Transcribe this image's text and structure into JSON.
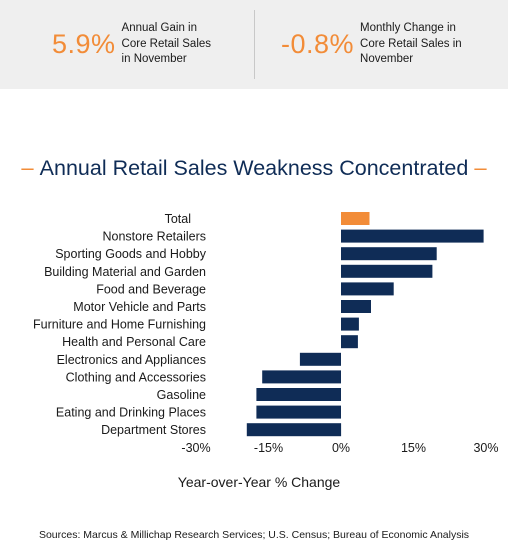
{
  "stats": [
    {
      "value": "5.9%",
      "label_lines": [
        "Annual Gain in",
        "Core Retail Sales",
        "in November"
      ]
    },
    {
      "value": "-0.8%",
      "label_lines": [
        "Monthly Change in",
        "Core Retail Sales in",
        "November"
      ]
    }
  ],
  "colors": {
    "accent": "#f28c38",
    "bar": "#0f2c56",
    "banner_bg": "#efefef",
    "title": "#0f2c56"
  },
  "chart_data": {
    "type": "bar",
    "orientation": "horizontal",
    "title": "Annual Retail Sales Weakness Concentrated",
    "xlabel": "Year-over-Year % Change",
    "ylabel": "",
    "xlim": [
      -30,
      30
    ],
    "xticks": [
      "-30%",
      "-15%",
      "0%",
      "15%",
      "30%"
    ],
    "xtick_values": [
      -30,
      -15,
      0,
      15,
      30
    ],
    "grid": false,
    "legend": "none",
    "categories": [
      "Total",
      "Nonstore Retailers",
      "Sporting Goods and Hobby",
      "Building Material and Garden",
      "Food and Beverage",
      "Motor Vehicle and Parts",
      "Furniture and Home Furnishing",
      "Health and Personal Care",
      "Electronics and Appliances",
      "Clothing and Accessories",
      "Gasoline",
      "Eating and Drinking Places",
      "Department Stores"
    ],
    "values": [
      5.9,
      29.5,
      19.8,
      18.9,
      10.9,
      6.2,
      3.7,
      3.5,
      -8.5,
      -16.3,
      -17.5,
      -17.5,
      -19.5
    ],
    "highlight_index": 0
  },
  "sources": "Sources: Marcus & Millichap Research Services; U.S. Census; Bureau of Economic Analysis"
}
